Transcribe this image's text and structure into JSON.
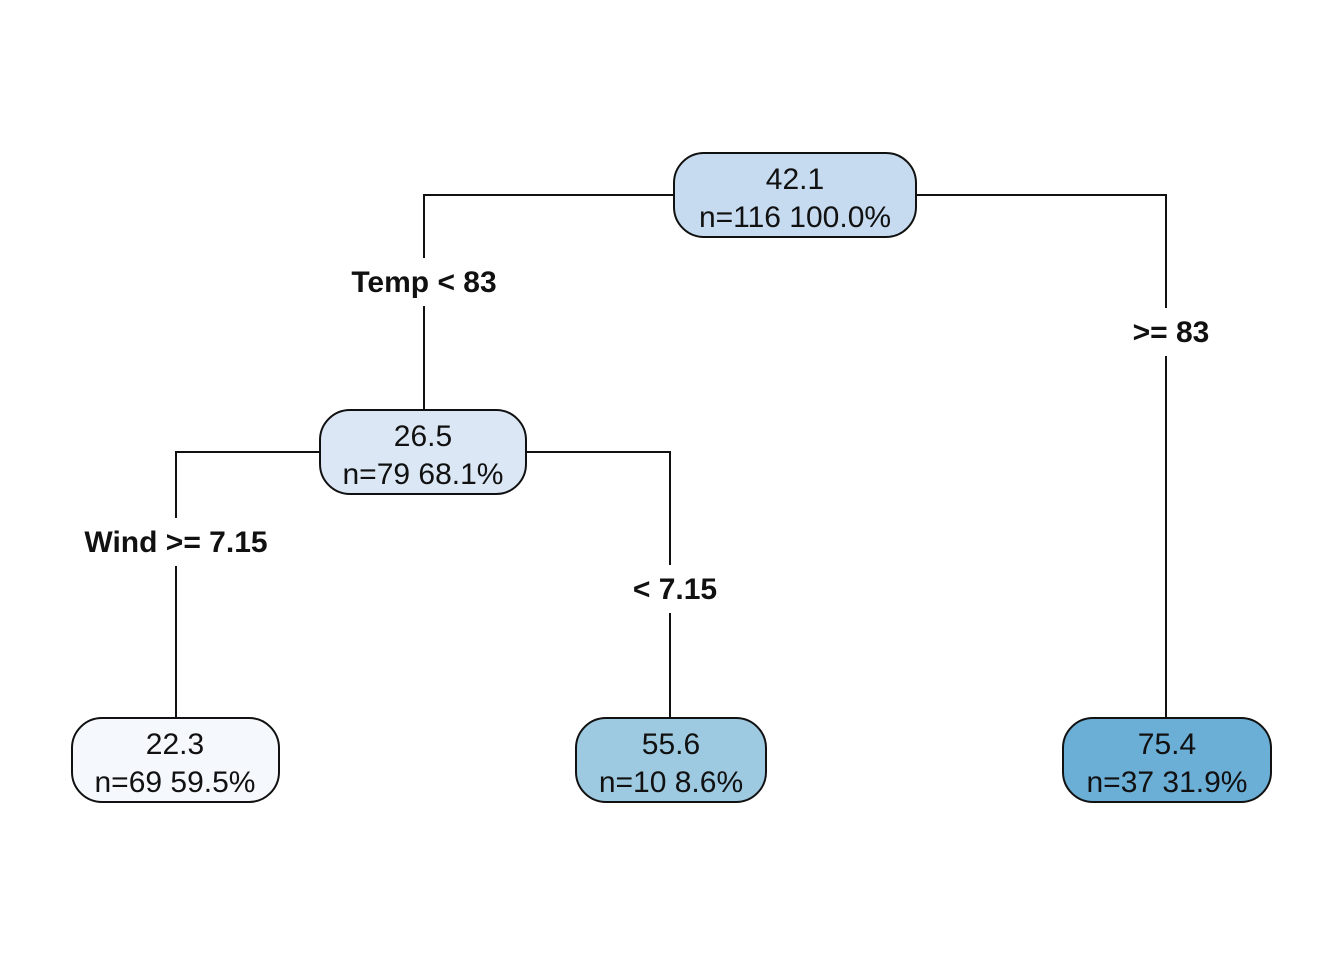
{
  "tree": {
    "nodes": [
      {
        "id": "root",
        "value": "42.1",
        "stats": "n=116  100.0%",
        "fill": "#c6dbef"
      },
      {
        "id": "temp-lt-83",
        "value": "26.5",
        "stats": "n=79  68.1%",
        "fill": "#dbe7f5"
      },
      {
        "id": "wind-ge-7-15",
        "value": "22.3",
        "stats": "n=69  59.5%",
        "fill": "#f5f9fe"
      },
      {
        "id": "wind-lt-7-15",
        "value": "55.6",
        "stats": "n=10  8.6%",
        "fill": "#9ecae1"
      },
      {
        "id": "temp-ge-83",
        "value": "75.4",
        "stats": "n=37  31.9%",
        "fill": "#6baed6"
      }
    ],
    "splits": [
      {
        "id": "split-temp-left",
        "label": "Temp < 83"
      },
      {
        "id": "split-temp-right",
        "label": ">= 83"
      },
      {
        "id": "split-wind-left",
        "label": "Wind >= 7.15"
      },
      {
        "id": "split-wind-right",
        "label": "< 7.15"
      }
    ]
  }
}
